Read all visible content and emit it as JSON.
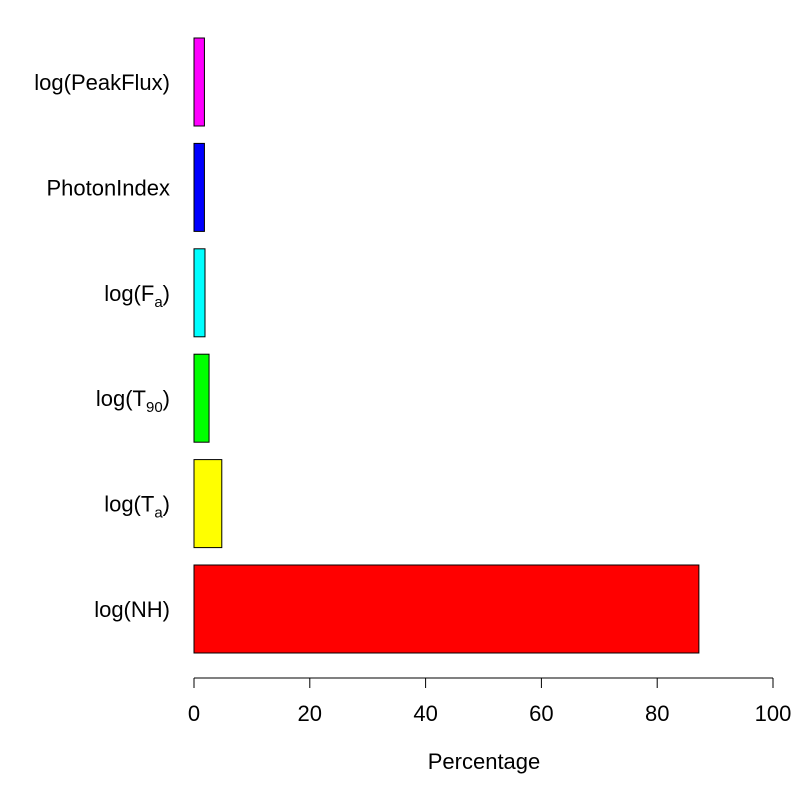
{
  "chart_data": {
    "type": "bar",
    "orientation": "horizontal",
    "categories": [
      {
        "base": "log",
        "main": "NH",
        "sub": "",
        "display": "log(NH)"
      },
      {
        "base": "log",
        "main": "T",
        "sub": "a",
        "display": "log(Ta)"
      },
      {
        "base": "log",
        "main": "T",
        "sub": "90",
        "display": "log(T90)"
      },
      {
        "base": "log",
        "main": "F",
        "sub": "a",
        "display": "log(Fa)"
      },
      {
        "base": "",
        "main": "PhotonIndex",
        "sub": "",
        "display": "PhotonIndex"
      },
      {
        "base": "log",
        "main": "PeakFlux",
        "sub": "",
        "display": "log(PeakFlux)"
      }
    ],
    "values": [
      87.2,
      4.8,
      2.6,
      1.9,
      1.8,
      1.8
    ],
    "colors": [
      "#ff0000",
      "#ffff00",
      "#00ff00",
      "#00ffff",
      "#0000ff",
      "#ff00ff"
    ],
    "xlabel": "Percentage",
    "ylabel": "",
    "title": "",
    "xlim": [
      0,
      100
    ],
    "xticks": [
      0,
      20,
      40,
      60,
      80,
      100
    ],
    "grid": false
  }
}
